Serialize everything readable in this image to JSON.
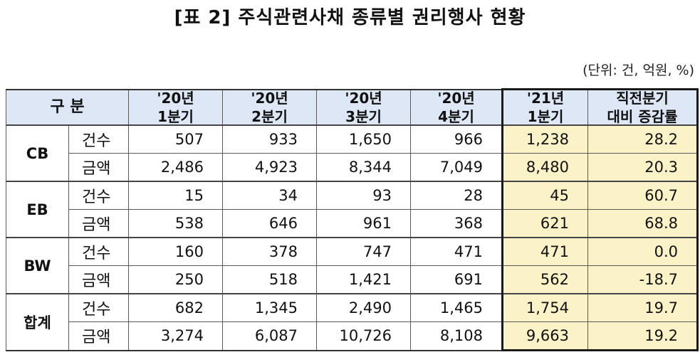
{
  "title": "[표 2] 주식관련사채 종류별 권리행사 현황",
  "unit_note": "(단위: 건, 억원, %)",
  "table": {
    "header": {
      "category": "구  분",
      "col_20q1": [
        "'20년",
        "1분기"
      ],
      "col_20q2": [
        "'20년",
        "2분기"
      ],
      "col_20q3": [
        "'20년",
        "3분기"
      ],
      "col_20q4": [
        "'20년",
        "4분기"
      ],
      "col_21q1": [
        "'21년",
        "1분기"
      ],
      "col_change": [
        "직전분기",
        "대비  증감률"
      ]
    },
    "groups": [
      {
        "name": "CB",
        "rows": [
          {
            "label": "건수",
            "values": [
              "507",
              "933",
              "1,650",
              "966",
              "1,238",
              "28.2"
            ]
          },
          {
            "label": "금액",
            "values": [
              "2,486",
              "4,923",
              "8,344",
              "7,049",
              "8,480",
              "20.3"
            ]
          }
        ]
      },
      {
        "name": "EB",
        "rows": [
          {
            "label": "건수",
            "values": [
              "15",
              "34",
              "93",
              "28",
              "45",
              "60.7"
            ]
          },
          {
            "label": "금액",
            "values": [
              "538",
              "646",
              "961",
              "368",
              "621",
              "68.8"
            ]
          }
        ]
      },
      {
        "name": "BW",
        "rows": [
          {
            "label": "건수",
            "values": [
              "160",
              "378",
              "747",
              "471",
              "471",
              "0.0"
            ]
          },
          {
            "label": "금액",
            "values": [
              "250",
              "518",
              "1,421",
              "691",
              "562",
              "-18.7"
            ]
          }
        ]
      },
      {
        "name": "합계",
        "rows": [
          {
            "label": "건수",
            "values": [
              "682",
              "1,345",
              "2,490",
              "1,465",
              "1,754",
              "19.7"
            ]
          },
          {
            "label": "금액",
            "values": [
              "3,274",
              "6,087",
              "10,726",
              "8,108",
              "9,663",
              "19.2"
            ]
          }
        ]
      }
    ]
  },
  "colors": {
    "header_bg": "#dde7f5",
    "highlight_bg": "#fbf2c7",
    "border": "#5a5a5a"
  }
}
